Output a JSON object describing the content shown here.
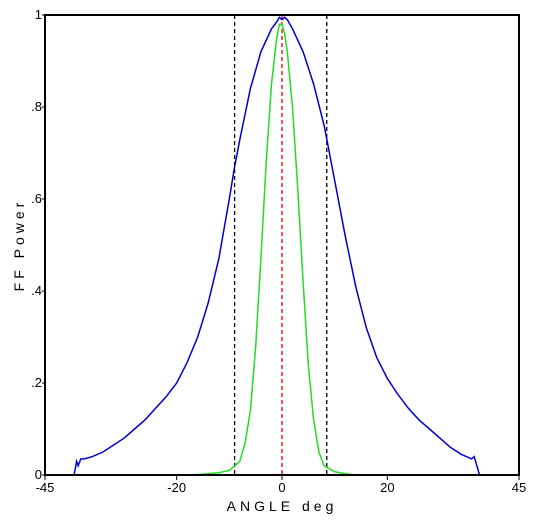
{
  "chart_data": {
    "type": "line",
    "title": "",
    "xlabel": "ANGLE deg",
    "ylabel": "FF Power",
    "xlim": [
      -45,
      45
    ],
    "ylim": [
      0,
      1
    ],
    "x_ticks": [
      -45,
      -20,
      0,
      20,
      45
    ],
    "x_tick_labels": [
      "-45",
      "-20",
      "0",
      "20",
      "45"
    ],
    "y_ticks": [
      0,
      0.2,
      0.4,
      0.6,
      0.8,
      1
    ],
    "y_tick_labels": [
      "0",
      ".2",
      ".4",
      ".6",
      ".8",
      "1"
    ],
    "grid": false,
    "vlines": [
      {
        "x": -9,
        "style": "dashed",
        "color": "#000000"
      },
      {
        "x": 0,
        "style": "dashed",
        "color": "#e00000"
      },
      {
        "x": 8.5,
        "style": "dashed",
        "color": "#000000"
      }
    ],
    "series": [
      {
        "color": "#0000cc",
        "points": [
          [
            -39.5,
            0.0
          ],
          [
            -39.3,
            0.01
          ],
          [
            -39,
            0.03
          ],
          [
            -38.7,
            0.02
          ],
          [
            -38.2,
            0.035
          ],
          [
            -37.5,
            0.035
          ],
          [
            -36,
            0.04
          ],
          [
            -34,
            0.05
          ],
          [
            -32,
            0.065
          ],
          [
            -30,
            0.08
          ],
          [
            -28,
            0.1
          ],
          [
            -26,
            0.12
          ],
          [
            -24,
            0.145
          ],
          [
            -22,
            0.17
          ],
          [
            -20,
            0.2
          ],
          [
            -18,
            0.245
          ],
          [
            -16,
            0.3
          ],
          [
            -14,
            0.375
          ],
          [
            -12,
            0.47
          ],
          [
            -10,
            0.6
          ],
          [
            -9,
            0.67
          ],
          [
            -8,
            0.73
          ],
          [
            -6,
            0.84
          ],
          [
            -4,
            0.92
          ],
          [
            -2,
            0.97
          ],
          [
            -1,
            0.985
          ],
          [
            -0.5,
            0.995
          ],
          [
            0,
            0.99
          ],
          [
            0.5,
            0.995
          ],
          [
            1,
            0.99
          ],
          [
            2,
            0.97
          ],
          [
            4,
            0.92
          ],
          [
            6,
            0.85
          ],
          [
            8,
            0.76
          ],
          [
            8.5,
            0.73
          ],
          [
            10,
            0.64
          ],
          [
            12,
            0.52
          ],
          [
            14,
            0.41
          ],
          [
            16,
            0.32
          ],
          [
            18,
            0.255
          ],
          [
            20,
            0.21
          ],
          [
            22,
            0.175
          ],
          [
            24,
            0.145
          ],
          [
            26,
            0.12
          ],
          [
            28,
            0.1
          ],
          [
            30,
            0.08
          ],
          [
            32,
            0.06
          ],
          [
            34,
            0.045
          ],
          [
            35,
            0.04
          ],
          [
            36,
            0.035
          ],
          [
            36.5,
            0.04
          ],
          [
            37,
            0.02
          ],
          [
            37.5,
            0.0
          ]
        ]
      },
      {
        "color": "#22dd22",
        "points": [
          [
            -17,
            0.0
          ],
          [
            -14,
            0.003
          ],
          [
            -12,
            0.005
          ],
          [
            -10,
            0.01
          ],
          [
            -8,
            0.03
          ],
          [
            -7,
            0.07
          ],
          [
            -6,
            0.14
          ],
          [
            -5,
            0.28
          ],
          [
            -4,
            0.47
          ],
          [
            -3,
            0.68
          ],
          [
            -2,
            0.85
          ],
          [
            -1,
            0.95
          ],
          [
            -0.5,
            0.98
          ],
          [
            0,
            0.98
          ],
          [
            0.5,
            0.96
          ],
          [
            1,
            0.92
          ],
          [
            2,
            0.8
          ],
          [
            3,
            0.62
          ],
          [
            4,
            0.42
          ],
          [
            5,
            0.24
          ],
          [
            6,
            0.12
          ],
          [
            7,
            0.05
          ],
          [
            8,
            0.02
          ],
          [
            10,
            0.007
          ],
          [
            12,
            0.003
          ],
          [
            14,
            0.0
          ],
          [
            17,
            0.0
          ]
        ]
      }
    ]
  }
}
